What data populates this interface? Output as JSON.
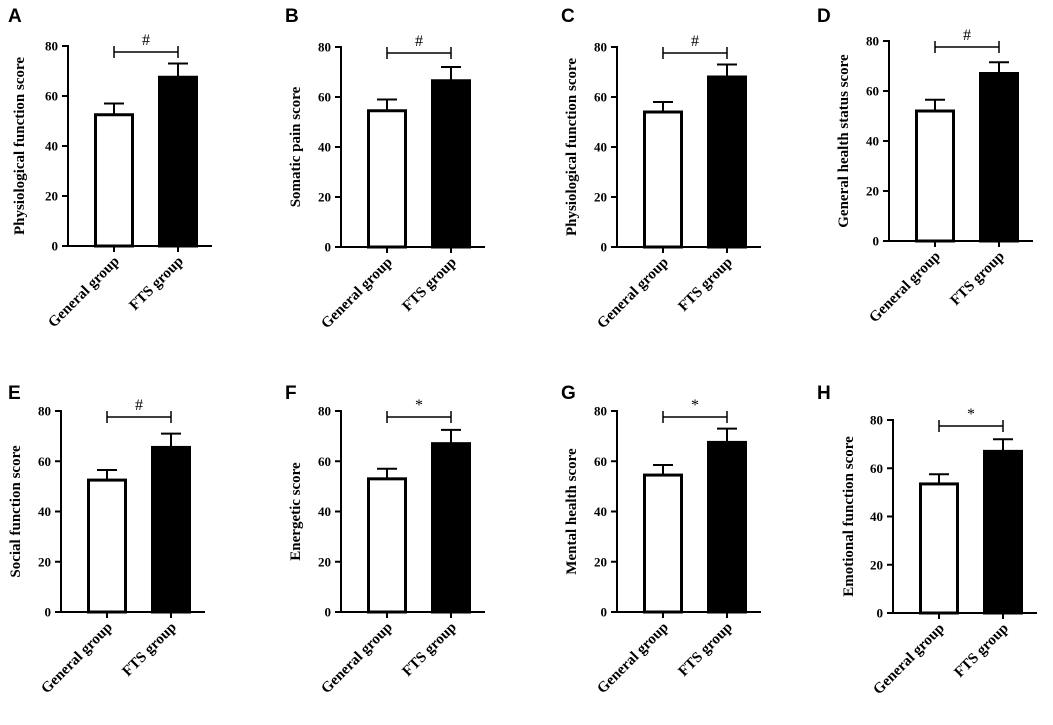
{
  "colors": {
    "general_group_fill": "#ffffff",
    "fts_group_fill": "#000000",
    "outline": "#000000"
  },
  "chart_data": [
    {
      "panel": "A",
      "type": "bar",
      "ylabel": "Physiological function score",
      "ylim": [
        0,
        80
      ],
      "yticks": [
        0,
        20,
        40,
        60,
        80
      ],
      "categories": [
        "General group",
        "FTS group"
      ],
      "values": [
        52.5,
        67.5
      ],
      "errors": [
        4.5,
        5.5
      ],
      "significance": "#"
    },
    {
      "panel": "B",
      "type": "bar",
      "ylabel": "Somatic pain score",
      "ylim": [
        0,
        80
      ],
      "yticks": [
        0,
        20,
        40,
        60,
        80
      ],
      "categories": [
        "General group",
        "FTS group"
      ],
      "values": [
        54.5,
        66.5
      ],
      "errors": [
        4.5,
        5.5
      ],
      "significance": "#"
    },
    {
      "panel": "C",
      "type": "bar",
      "ylabel": "Physiological function score",
      "ylim": [
        0,
        80
      ],
      "yticks": [
        0,
        20,
        40,
        60,
        80
      ],
      "categories": [
        "General group",
        "FTS group"
      ],
      "values": [
        54,
        68
      ],
      "errors": [
        4,
        5
      ],
      "significance": "#"
    },
    {
      "panel": "D",
      "type": "bar",
      "ylabel": "General health status score",
      "ylim": [
        0,
        80
      ],
      "yticks": [
        0,
        20,
        40,
        60,
        80
      ],
      "categories": [
        "General group",
        "FTS group"
      ],
      "values": [
        52,
        67
      ],
      "errors": [
        4.5,
        4.5
      ],
      "significance": "#"
    },
    {
      "panel": "E",
      "type": "bar",
      "ylabel": "Social function score",
      "ylim": [
        0,
        80
      ],
      "yticks": [
        0,
        20,
        40,
        60,
        80
      ],
      "categories": [
        "General group",
        "FTS group"
      ],
      "values": [
        52.5,
        65.5
      ],
      "errors": [
        4,
        5.5
      ],
      "significance": "#"
    },
    {
      "panel": "F",
      "type": "bar",
      "ylabel": "Energetic score",
      "ylim": [
        0,
        80
      ],
      "yticks": [
        0,
        20,
        40,
        60,
        80
      ],
      "categories": [
        "General group",
        "FTS group"
      ],
      "values": [
        53,
        67
      ],
      "errors": [
        4,
        5.5
      ],
      "significance": "*"
    },
    {
      "panel": "G",
      "type": "bar",
      "ylabel": "Mental health score",
      "ylim": [
        0,
        80
      ],
      "yticks": [
        0,
        20,
        40,
        60,
        80
      ],
      "categories": [
        "General group",
        "FTS group"
      ],
      "values": [
        54.5,
        67.5
      ],
      "errors": [
        4,
        5.5
      ],
      "significance": "*"
    },
    {
      "panel": "H",
      "type": "bar",
      "ylabel": "Emotional function score",
      "ylim": [
        0,
        80
      ],
      "yticks": [
        0,
        20,
        40,
        60,
        80
      ],
      "categories": [
        "General group",
        "FTS group"
      ],
      "values": [
        53.5,
        67
      ],
      "errors": [
        4,
        5
      ],
      "significance": "*"
    }
  ]
}
